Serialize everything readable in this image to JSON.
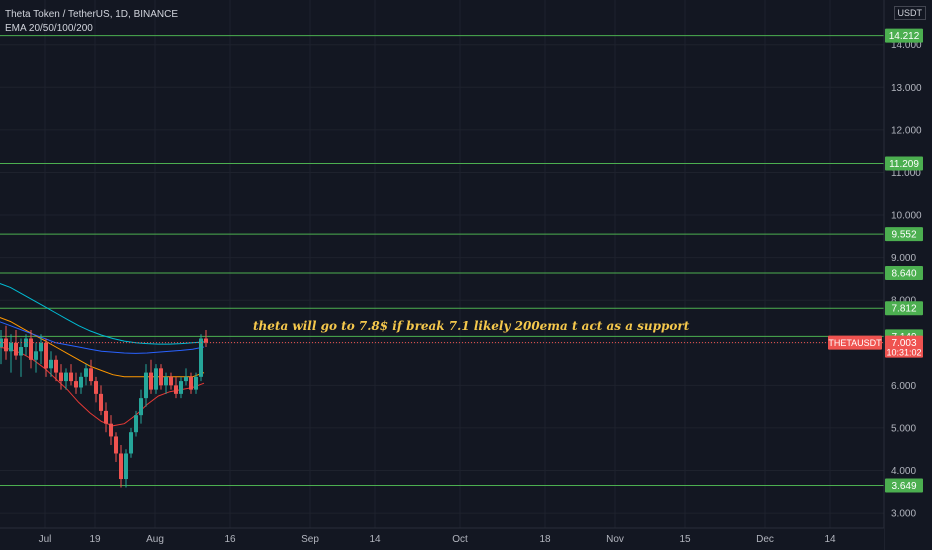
{
  "legend": {
    "title": "Theta Token / TetherUS, 1D, BINANCE",
    "indicator": "EMA 20/50/100/200"
  },
  "currency": "USDT",
  "annotation": "theta will go to 7.8$ if break 7.1 likely 200ema t act as a support",
  "colors": {
    "background": "#131722",
    "grid": "#1e222d",
    "level": "#4caf50",
    "up": "#26a69a",
    "down": "#ef5350",
    "ema20": "#e53935",
    "ema50": "#ff9800",
    "ema100": "#2962ff",
    "ema200": "#00bcd4",
    "annotation": "#f5c84c"
  },
  "chart_data": {
    "type": "candlestick",
    "symbol": "THETAUSDT",
    "y_ticks": [
      3.0,
      4.0,
      5.0,
      6.0,
      7.0,
      8.0,
      9.0,
      10.0,
      11.0,
      12.0,
      13.0,
      14.0
    ],
    "y_tick_labels": [
      "3.000",
      "4.000",
      "5.000",
      "6.000",
      "",
      "8.000",
      "9.000",
      "10.000",
      "11.000",
      "12.000",
      "13.000",
      "14.000"
    ],
    "ylim": [
      2.65,
      15.05
    ],
    "x_ticks": [
      {
        "label": "Jul",
        "day": 9
      },
      {
        "label": "19",
        "day": 19
      },
      {
        "label": "Aug",
        "day": 31
      },
      {
        "label": "16",
        "day": 46
      },
      {
        "label": "Sep",
        "day": 62
      },
      {
        "label": "14",
        "day": 75
      },
      {
        "label": "Oct",
        "day": 92
      },
      {
        "label": "18",
        "day": 109
      },
      {
        "label": "Nov",
        "day": 123
      },
      {
        "label": "15",
        "day": 137
      },
      {
        "label": "Dec",
        "day": 153
      },
      {
        "label": "14",
        "day": 166
      }
    ],
    "horizontal_levels": [
      {
        "value": 14.212,
        "label": "14.212"
      },
      {
        "value": 11.209,
        "label": "11.209"
      },
      {
        "value": 9.552,
        "label": "9.552"
      },
      {
        "value": 8.64,
        "label": "8.640"
      },
      {
        "value": 7.812,
        "label": "7.812"
      },
      {
        "value": 7.149,
        "label": "7.149"
      },
      {
        "value": 3.649,
        "label": "3.649"
      }
    ],
    "last_price": {
      "value": 7.003,
      "label": "7.003",
      "symbol_label": "THETAUSDT",
      "countdown": "10:31:02"
    },
    "candles": [
      {
        "o": 6.9,
        "h": 7.3,
        "l": 6.5,
        "c": 7.1
      },
      {
        "o": 7.1,
        "h": 7.4,
        "l": 6.6,
        "c": 6.8
      },
      {
        "o": 6.8,
        "h": 7.2,
        "l": 6.3,
        "c": 7.0
      },
      {
        "o": 7.0,
        "h": 7.3,
        "l": 6.6,
        "c": 6.7
      },
      {
        "o": 6.7,
        "h": 7.1,
        "l": 6.2,
        "c": 6.9
      },
      {
        "o": 6.9,
        "h": 7.2,
        "l": 6.7,
        "c": 7.1
      },
      {
        "o": 7.1,
        "h": 7.3,
        "l": 6.4,
        "c": 6.6
      },
      {
        "o": 6.6,
        "h": 7.0,
        "l": 6.3,
        "c": 6.8
      },
      {
        "o": 6.8,
        "h": 7.2,
        "l": 6.5,
        "c": 7.0
      },
      {
        "o": 7.0,
        "h": 7.1,
        "l": 6.2,
        "c": 6.4
      },
      {
        "o": 6.4,
        "h": 6.8,
        "l": 6.2,
        "c": 6.6
      },
      {
        "o": 6.6,
        "h": 6.7,
        "l": 6.1,
        "c": 6.3
      },
      {
        "o": 6.3,
        "h": 6.5,
        "l": 5.9,
        "c": 6.1
      },
      {
        "o": 6.1,
        "h": 6.4,
        "l": 5.9,
        "c": 6.3
      },
      {
        "o": 6.3,
        "h": 6.5,
        "l": 6.0,
        "c": 6.1
      },
      {
        "o": 6.1,
        "h": 6.3,
        "l": 5.8,
        "c": 5.95
      },
      {
        "o": 5.95,
        "h": 6.3,
        "l": 5.8,
        "c": 6.2
      },
      {
        "o": 6.2,
        "h": 6.5,
        "l": 6.0,
        "c": 6.4
      },
      {
        "o": 6.4,
        "h": 6.6,
        "l": 6.0,
        "c": 6.1
      },
      {
        "o": 6.1,
        "h": 6.2,
        "l": 5.6,
        "c": 5.8
      },
      {
        "o": 5.8,
        "h": 6.0,
        "l": 5.3,
        "c": 5.4
      },
      {
        "o": 5.4,
        "h": 5.6,
        "l": 4.9,
        "c": 5.1
      },
      {
        "o": 5.1,
        "h": 5.3,
        "l": 4.6,
        "c": 4.8
      },
      {
        "o": 4.8,
        "h": 4.9,
        "l": 4.2,
        "c": 4.4
      },
      {
        "o": 4.4,
        "h": 4.6,
        "l": 3.6,
        "c": 3.8
      },
      {
        "o": 3.8,
        "h": 4.5,
        "l": 3.6,
        "c": 4.4
      },
      {
        "o": 4.4,
        "h": 5.0,
        "l": 4.3,
        "c": 4.9
      },
      {
        "o": 4.9,
        "h": 5.4,
        "l": 4.8,
        "c": 5.3
      },
      {
        "o": 5.3,
        "h": 5.9,
        "l": 5.1,
        "c": 5.7
      },
      {
        "o": 5.7,
        "h": 6.5,
        "l": 5.5,
        "c": 6.3
      },
      {
        "o": 6.3,
        "h": 6.6,
        "l": 5.8,
        "c": 5.9
      },
      {
        "o": 5.9,
        "h": 6.5,
        "l": 5.8,
        "c": 6.4
      },
      {
        "o": 6.4,
        "h": 6.5,
        "l": 5.9,
        "c": 6.0
      },
      {
        "o": 6.0,
        "h": 6.3,
        "l": 5.8,
        "c": 6.2
      },
      {
        "o": 6.2,
        "h": 6.3,
        "l": 5.9,
        "c": 6.0
      },
      {
        "o": 6.0,
        "h": 6.2,
        "l": 5.7,
        "c": 5.8
      },
      {
        "o": 5.8,
        "h": 6.2,
        "l": 5.7,
        "c": 6.1
      },
      {
        "o": 6.1,
        "h": 6.4,
        "l": 6.0,
        "c": 6.2
      },
      {
        "o": 6.2,
        "h": 6.3,
        "l": 5.8,
        "c": 5.9
      },
      {
        "o": 5.9,
        "h": 6.3,
        "l": 5.8,
        "c": 6.2
      },
      {
        "o": 6.2,
        "h": 7.2,
        "l": 6.1,
        "c": 7.1
      },
      {
        "o": 7.1,
        "h": 7.3,
        "l": 6.9,
        "c": 7.003
      }
    ],
    "ema_lines": [
      {
        "name": "EMA 20",
        "values": [
          6.9,
          6.85,
          6.75,
          6.6,
          6.4,
          6.15,
          5.9,
          5.6,
          5.35,
          5.15,
          5.05,
          5.1,
          5.3,
          5.55,
          5.75,
          5.85,
          5.9,
          5.95,
          6.05
        ]
      },
      {
        "name": "EMA 50",
        "values": [
          7.6,
          7.5,
          7.35,
          7.2,
          7.05,
          6.9,
          6.75,
          6.6,
          6.45,
          6.35,
          6.25,
          6.2,
          6.2,
          6.2,
          6.2,
          6.2,
          6.2,
          6.2,
          6.3
        ]
      },
      {
        "name": "EMA 100",
        "values": [
          7.5,
          7.4,
          7.3,
          7.2,
          7.1,
          7.0,
          6.95,
          6.9,
          6.85,
          6.8,
          6.78,
          6.76,
          6.75,
          6.76,
          6.78,
          6.8,
          6.82,
          6.85,
          6.9
        ]
      },
      {
        "name": "EMA 200",
        "values": [
          8.4,
          8.3,
          8.15,
          8.0,
          7.85,
          7.7,
          7.55,
          7.4,
          7.28,
          7.18,
          7.1,
          7.04,
          7.0,
          6.98,
          6.97,
          6.97,
          6.98,
          7.0,
          7.02
        ]
      }
    ]
  }
}
